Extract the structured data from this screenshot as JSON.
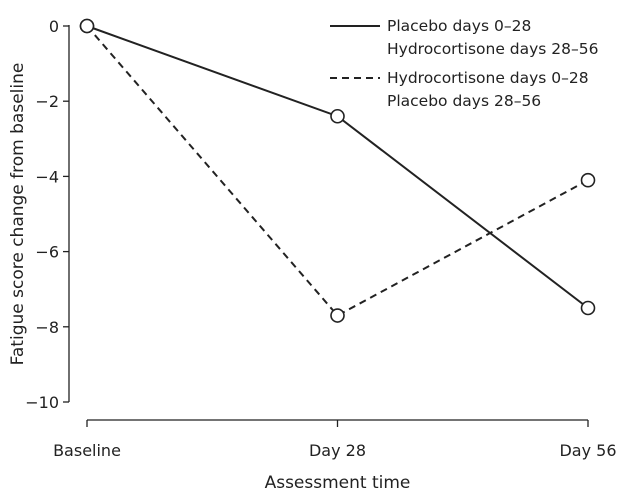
{
  "chart_data": {
    "type": "line",
    "categories": [
      "Baseline",
      "Day 28",
      "Day 56"
    ],
    "xlabel": "Assessment time",
    "ylabel": "Fatigue score change from baseline",
    "ylim": [
      -10,
      0
    ],
    "yticks": [
      0,
      -2,
      -4,
      -6,
      -8,
      -10
    ],
    "ytick_labels": [
      "0",
      "−2",
      "−4",
      "−6",
      "−8",
      "−10"
    ],
    "grid": false,
    "legend_position": "top-right",
    "marker": "open-circle",
    "series": [
      {
        "legend_lines": [
          "Placebo days 0–28",
          "Hydrocortisone days 28–56"
        ],
        "style": "solid",
        "color": "#222222",
        "values": [
          0,
          -2.4,
          -7.5
        ]
      },
      {
        "legend_lines": [
          "Hydrocortisone days 0–28",
          "Placebo days 28–56"
        ],
        "style": "dashed",
        "color": "#222222",
        "values": [
          0,
          -7.7,
          -4.1
        ]
      }
    ]
  }
}
